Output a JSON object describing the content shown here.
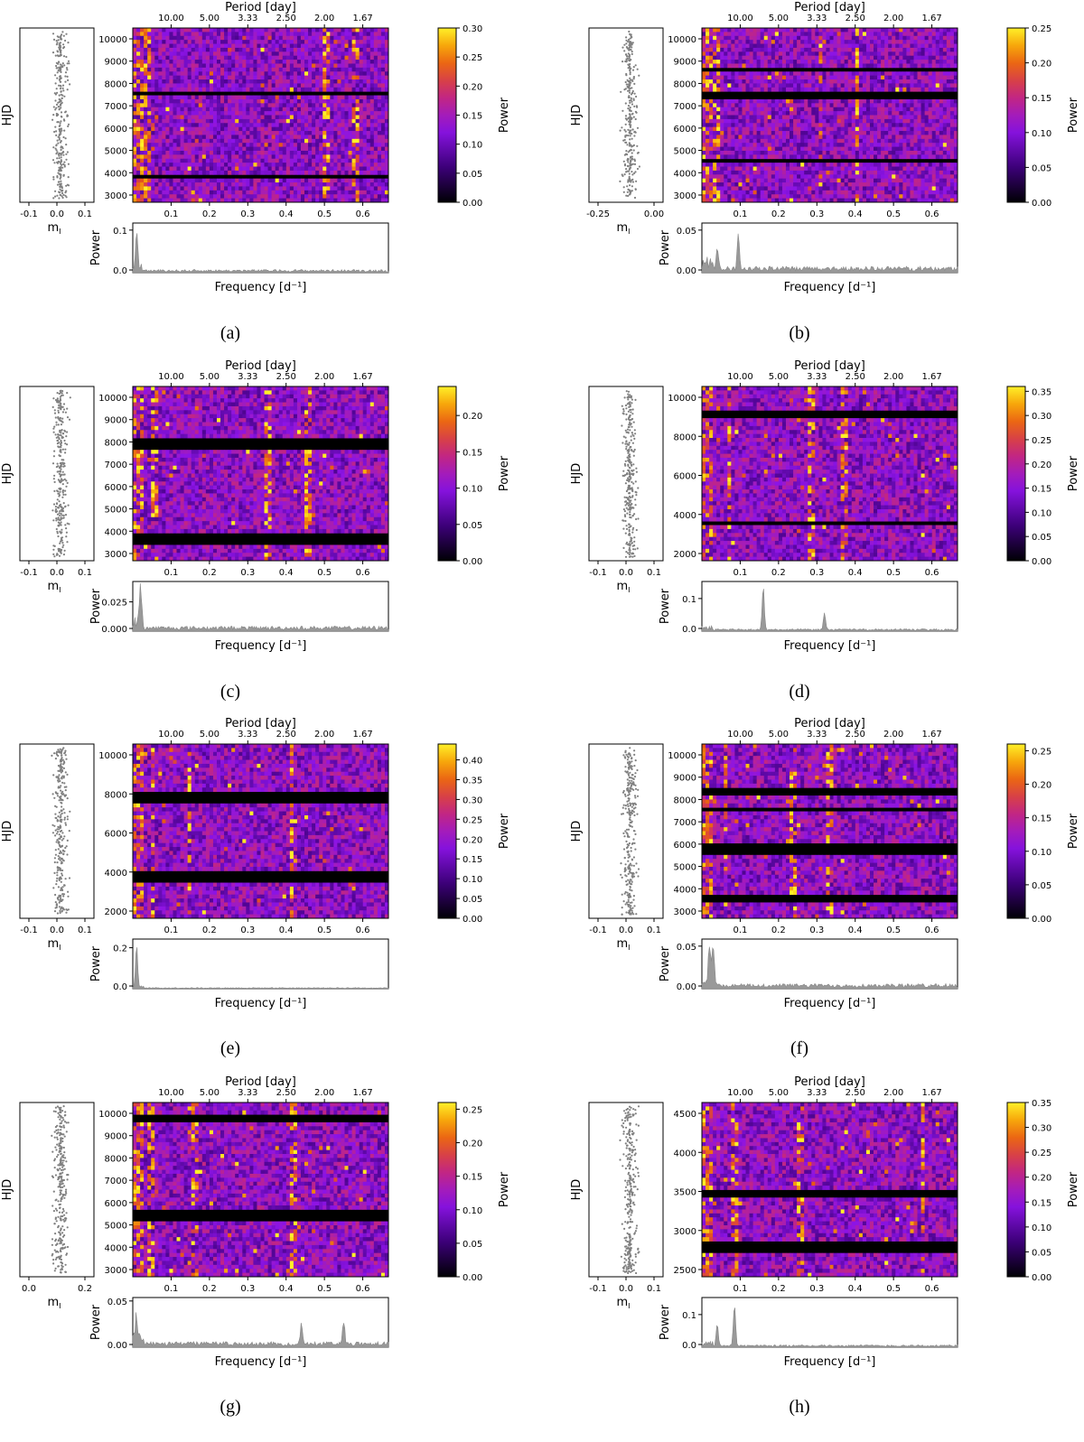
{
  "figure": {
    "panels": [
      {
        "caption": "(a)",
        "mag_ticks": [
          "-0.1",
          "0.0",
          "0.1"
        ],
        "hjd_ticks": [
          "3000",
          "4000",
          "5000",
          "6000",
          "7000",
          "8000",
          "9000",
          "10000"
        ],
        "cbar_ticks": [
          "0.00",
          "0.05",
          "0.10",
          "0.15",
          "0.20",
          "0.25",
          "0.30"
        ],
        "power_ticks": [
          "0.0",
          "0.1"
        ]
      },
      {
        "caption": "(b)",
        "mag_ticks": [
          "-0.25",
          "0.00"
        ],
        "hjd_ticks": [
          "3000",
          "4000",
          "5000",
          "6000",
          "7000",
          "8000",
          "9000",
          "10000"
        ],
        "cbar_ticks": [
          "0.00",
          "0.05",
          "0.10",
          "0.15",
          "0.20",
          "0.25"
        ],
        "power_ticks": [
          "0.00",
          "0.05"
        ]
      },
      {
        "caption": "(c)",
        "mag_ticks": [
          "-0.1",
          "0.0",
          "0.1"
        ],
        "hjd_ticks": [
          "3000",
          "4000",
          "5000",
          "6000",
          "7000",
          "8000",
          "9000",
          "10000"
        ],
        "cbar_ticks": [
          "0.00",
          "0.05",
          "0.10",
          "0.15",
          "0.20"
        ],
        "power_ticks": [
          "0.000",
          "0.025"
        ]
      },
      {
        "caption": "(d)",
        "mag_ticks": [
          "-0.1",
          "0.0",
          "0.1"
        ],
        "hjd_ticks": [
          "2000",
          "4000",
          "6000",
          "8000",
          "10000"
        ],
        "cbar_ticks": [
          "0.00",
          "0.05",
          "0.10",
          "0.15",
          "0.20",
          "0.25",
          "0.30",
          "0.35"
        ],
        "power_ticks": [
          "0.0",
          "0.1"
        ]
      },
      {
        "caption": "(e)",
        "mag_ticks": [
          "-0.1",
          "0.0",
          "0.1"
        ],
        "hjd_ticks": [
          "2000",
          "4000",
          "6000",
          "8000",
          "10000"
        ],
        "cbar_ticks": [
          "0.00",
          "0.05",
          "0.10",
          "0.15",
          "0.20",
          "0.25",
          "0.30",
          "0.35",
          "0.40"
        ],
        "power_ticks": [
          "0.0",
          "0.2"
        ]
      },
      {
        "caption": "(f)",
        "mag_ticks": [
          "-0.1",
          "0.0",
          "0.1"
        ],
        "hjd_ticks": [
          "3000",
          "4000",
          "5000",
          "6000",
          "7000",
          "8000",
          "9000",
          "10000"
        ],
        "cbar_ticks": [
          "0.00",
          "0.05",
          "0.10",
          "0.15",
          "0.20",
          "0.25"
        ],
        "power_ticks": [
          "0.00",
          "0.05"
        ]
      },
      {
        "caption": "(g)",
        "mag_ticks": [
          "0.0",
          "0.2"
        ],
        "hjd_ticks": [
          "3000",
          "4000",
          "5000",
          "6000",
          "7000",
          "8000",
          "9000",
          "10000"
        ],
        "cbar_ticks": [
          "0.00",
          "0.05",
          "0.10",
          "0.15",
          "0.20",
          "0.25"
        ],
        "power_ticks": [
          "0.00",
          "0.05"
        ]
      },
      {
        "caption": "(h)",
        "mag_ticks": [
          "-0.1",
          "0.0",
          "0.1"
        ],
        "hjd_ticks": [
          "2500",
          "3000",
          "3500",
          "4000",
          "4500"
        ],
        "cbar_ticks": [
          "0.00",
          "0.05",
          "0.10",
          "0.15",
          "0.20",
          "0.25",
          "0.30",
          "0.35"
        ],
        "power_ticks": [
          "0.0",
          "0.1"
        ]
      }
    ],
    "shared": {
      "period_label": "Period [day]",
      "period_ticks": [
        "10.00",
        "5.00",
        "3.33",
        "2.50",
        "2.00",
        "1.67"
      ],
      "freq_label": "Frequency [d$^{-1}$]",
      "freq_label_display": "Frequency [d⁻¹]",
      "freq_ticks": [
        "0.1",
        "0.2",
        "0.3",
        "0.4",
        "0.5",
        "0.6"
      ],
      "hjd_label": "HJD",
      "mag_label": "m",
      "mag_subscript": "I",
      "power_label": "Power",
      "cbar_label": "Power"
    }
  },
  "chart_data": [
    {
      "type": "heatmap",
      "panel": "(a)",
      "xlabel": "Frequency [d⁻¹]",
      "ylabel": "HJD",
      "top_axis_label": "Period [day]",
      "xlim": [
        0.0,
        0.667
      ],
      "ylim": [
        2400,
        10300
      ],
      "colorbar": {
        "label": "Power",
        "range": [
          0.0,
          0.3
        ],
        "colormap": "gnuplot"
      },
      "periodogram": {
        "ylabel": "Power",
        "ylim": [
          0,
          0.12
        ],
        "peaks": [
          {
            "frequency": 0.01,
            "power": 0.1
          }
        ],
        "baseline": 0.005
      }
    },
    {
      "type": "heatmap",
      "panel": "(b)",
      "xlabel": "Frequency [d⁻¹]",
      "ylabel": "HJD",
      "top_axis_label": "Period [day]",
      "xlim": [
        0.0,
        0.667
      ],
      "ylim": [
        2400,
        10300
      ],
      "colorbar": {
        "label": "Power",
        "range": [
          0.0,
          0.25
        ],
        "colormap": "gnuplot"
      },
      "periodogram": {
        "ylabel": "Power",
        "ylim": [
          0,
          0.06
        ],
        "peaks": [
          {
            "frequency": 0.04,
            "power": 0.03
          },
          {
            "frequency": 0.095,
            "power": 0.05
          }
        ],
        "baseline": 0.005
      }
    },
    {
      "type": "heatmap",
      "panel": "(c)",
      "xlabel": "Frequency [d⁻¹]",
      "ylabel": "HJD",
      "top_axis_label": "Period [day]",
      "xlim": [
        0.0,
        0.667
      ],
      "ylim": [
        2400,
        10300
      ],
      "colorbar": {
        "label": "Power",
        "range": [
          0.0,
          0.24
        ],
        "colormap": "gnuplot"
      },
      "periodogram": {
        "ylabel": "Power",
        "ylim": [
          0,
          0.045
        ],
        "peaks": [
          {
            "frequency": 0.02,
            "power": 0.04
          }
        ],
        "baseline": 0.003
      }
    },
    {
      "type": "heatmap",
      "panel": "(d)",
      "xlabel": "Frequency [d⁻¹]",
      "ylabel": "HJD",
      "top_axis_label": "Period [day]",
      "xlim": [
        0.0,
        0.667
      ],
      "ylim": [
        1000,
        10400
      ],
      "colorbar": {
        "label": "Power",
        "range": [
          0.0,
          0.36
        ],
        "colormap": "gnuplot"
      },
      "periodogram": {
        "ylabel": "Power",
        "ylim": [
          0,
          0.16
        ],
        "peaks": [
          {
            "frequency": 0.16,
            "power": 0.15
          },
          {
            "frequency": 0.32,
            "power": 0.06
          }
        ],
        "baseline": 0.005
      }
    },
    {
      "type": "heatmap",
      "panel": "(e)",
      "xlabel": "Frequency [d⁻¹]",
      "ylabel": "HJD",
      "top_axis_label": "Period [day]",
      "xlim": [
        0.0,
        0.667
      ],
      "ylim": [
        600,
        10400
      ],
      "colorbar": {
        "label": "Power",
        "range": [
          0.0,
          0.44
        ],
        "colormap": "gnuplot"
      },
      "periodogram": {
        "ylabel": "Power",
        "ylim": [
          0,
          0.25
        ],
        "peaks": [
          {
            "frequency": 0.01,
            "power": 0.22
          }
        ],
        "baseline": 0.004
      }
    },
    {
      "type": "heatmap",
      "panel": "(f)",
      "xlabel": "Frequency [d⁻¹]",
      "ylabel": "HJD",
      "top_axis_label": "Period [day]",
      "xlim": [
        0.0,
        0.667
      ],
      "ylim": [
        2400,
        10300
      ],
      "colorbar": {
        "label": "Power",
        "range": [
          0.0,
          0.26
        ],
        "colormap": "gnuplot"
      },
      "periodogram": {
        "ylabel": "Power",
        "ylim": [
          0,
          0.06
        ],
        "peaks": [
          {
            "frequency": 0.02,
            "power": 0.05
          },
          {
            "frequency": 0.03,
            "power": 0.05
          }
        ],
        "baseline": 0.004
      }
    },
    {
      "type": "heatmap",
      "panel": "(g)",
      "xlabel": "Frequency [d⁻¹]",
      "ylabel": "HJD",
      "top_axis_label": "Period [day]",
      "xlim": [
        0.0,
        0.667
      ],
      "ylim": [
        2400,
        10300
      ],
      "colorbar": {
        "label": "Power",
        "range": [
          0.0,
          0.26
        ],
        "colormap": "gnuplot"
      },
      "periodogram": {
        "ylabel": "Power",
        "ylim": [
          0,
          0.055
        ],
        "peaks": [
          {
            "frequency": 0.01,
            "power": 0.03
          },
          {
            "frequency": 0.44,
            "power": 0.025
          },
          {
            "frequency": 0.55,
            "power": 0.03
          }
        ],
        "baseline": 0.004
      }
    },
    {
      "type": "heatmap",
      "panel": "(h)",
      "xlabel": "Frequency [d⁻¹]",
      "ylabel": "HJD",
      "top_axis_label": "Period [day]",
      "xlim": [
        0.0,
        0.667
      ],
      "ylim": [
        2350,
        4950
      ],
      "colorbar": {
        "label": "Power",
        "range": [
          0.0,
          0.35
        ],
        "colormap": "gnuplot"
      },
      "periodogram": {
        "ylabel": "Power",
        "ylim": [
          0,
          0.16
        ],
        "peaks": [
          {
            "frequency": 0.04,
            "power": 0.08
          },
          {
            "frequency": 0.085,
            "power": 0.15
          }
        ],
        "baseline": 0.005
      }
    }
  ]
}
